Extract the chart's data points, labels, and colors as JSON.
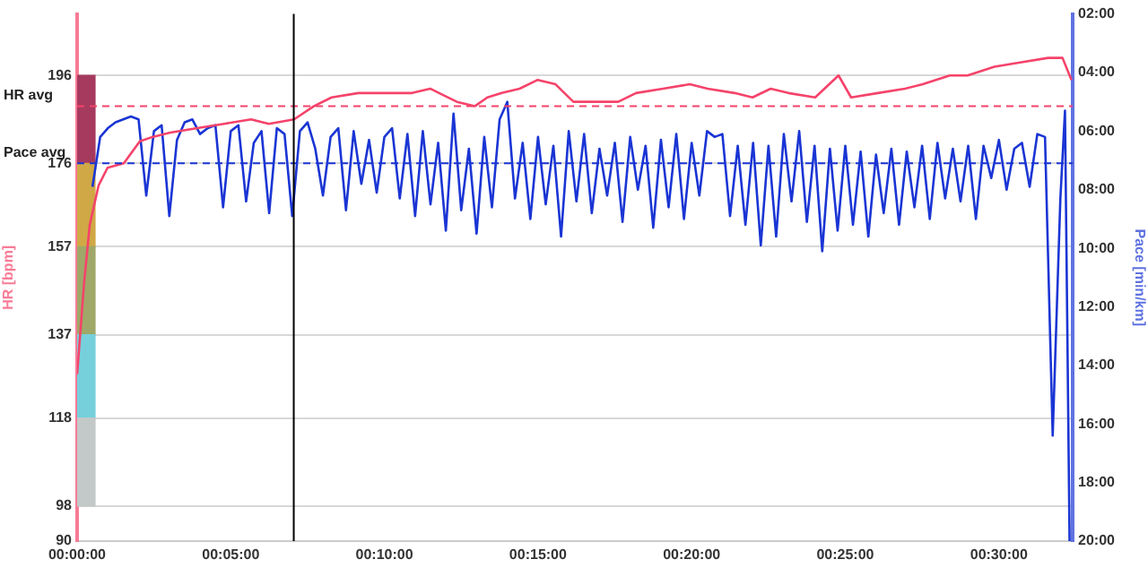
{
  "chart_data": {
    "type": "line",
    "ylabel": "HR [bpm]",
    "y2label": "Pace [min/km]",
    "xlim": [
      0,
      32.4
    ],
    "xticks": [
      {
        "value": 0,
        "label": "00:00:00"
      },
      {
        "value": 5,
        "label": "00:05:00"
      },
      {
        "value": 10,
        "label": "00:10:00"
      },
      {
        "value": 15,
        "label": "00:15:00"
      },
      {
        "value": 20,
        "label": "00:20:00"
      },
      {
        "value": 25,
        "label": "00:25:00"
      },
      {
        "value": 30,
        "label": "00:30:00"
      }
    ],
    "ylim": [
      90,
      210
    ],
    "yticks": [
      90,
      98,
      118,
      137,
      157,
      176,
      196
    ],
    "y2lim": [
      20,
      2
    ],
    "y2ticks": [
      {
        "value": 2,
        "label": "02:00"
      },
      {
        "value": 4,
        "label": "04:00"
      },
      {
        "value": 6,
        "label": "06:00"
      },
      {
        "value": 8,
        "label": "08:00"
      },
      {
        "value": 10,
        "label": "10:00"
      },
      {
        "value": 12,
        "label": "12:00"
      },
      {
        "value": 14,
        "label": "14:00"
      },
      {
        "value": 16,
        "label": "16:00"
      },
      {
        "value": 18,
        "label": "18:00"
      },
      {
        "value": 20,
        "label": "20:00"
      }
    ],
    "grid": "y",
    "legend": false,
    "marker": "none",
    "line_style": "solid",
    "series": [
      {
        "type": "bar",
        "color": "#c3c8c8",
        "axis": "y",
        "x": [
          0.29
        ],
        "base": [
          98
        ],
        "values": [
          20
        ]
      },
      {
        "type": "bar",
        "color": "#76d0dc",
        "axis": "y",
        "x": [
          0.29
        ],
        "base": [
          118
        ],
        "values": [
          19
        ]
      },
      {
        "type": "bar",
        "color": "#9fa868",
        "axis": "y",
        "x": [
          0.29
        ],
        "base": [
          137
        ],
        "values": [
          20
        ]
      },
      {
        "type": "bar",
        "color": "#d0a845",
        "axis": "y",
        "x": [
          0.29
        ],
        "base": [
          157
        ],
        "values": [
          19
        ]
      },
      {
        "type": "bar",
        "color": "#a63a5e",
        "axis": "y",
        "x": [
          0.29
        ],
        "base": [
          176
        ],
        "values": [
          20
        ]
      },
      {
        "color": "#f5436a",
        "axis": "y",
        "x": [
          0,
          0.23,
          0.41,
          0.7,
          0.99,
          1.52,
          2.04,
          2.45,
          3.03,
          3.91,
          4.78,
          5.66,
          6.24,
          7.06,
          7.7,
          8.28,
          9.15,
          9.74,
          10.9,
          11.49,
          11.78,
          12.36,
          12.94,
          13.35,
          13.82,
          14.4,
          14.99,
          15.57,
          16.15,
          16.73,
          17.61,
          18.19,
          19.07,
          19.94,
          20.52,
          21.4,
          21.98,
          22.57,
          23.15,
          24.02,
          24.78,
          25.19,
          26.06,
          26.94,
          27.52,
          28.4,
          28.98,
          29.85,
          30.73,
          31.6,
          32.07,
          32.36
        ],
        "values": [
          128,
          149,
          162,
          171,
          175,
          176,
          181,
          182,
          183,
          184,
          185,
          186,
          185,
          186,
          189,
          191,
          192,
          192,
          192,
          193,
          192,
          190,
          189,
          191,
          192,
          193,
          195,
          194,
          190,
          190,
          190,
          192,
          193,
          194,
          193,
          192,
          191,
          193,
          192,
          191,
          196,
          191,
          192,
          193,
          194,
          196,
          196,
          198,
          199,
          200,
          200,
          195
        ]
      },
      {
        "color": "#1a35d4",
        "axis": "y2",
        "x": [
          0.5,
          0.75,
          1,
          1.25,
          1.5,
          1.75,
          2,
          2.25,
          2.5,
          2.75,
          3,
          3.25,
          3.5,
          3.75,
          4,
          4.25,
          4.5,
          4.75,
          5,
          5.25,
          5.5,
          5.75,
          6,
          6.25,
          6.5,
          6.75,
          7,
          7.25,
          7.5,
          7.75,
          8,
          8.25,
          8.5,
          8.75,
          9,
          9.25,
          9.5,
          9.75,
          10,
          10.25,
          10.5,
          10.75,
          11,
          11.25,
          11.5,
          11.75,
          12,
          12.25,
          12.5,
          12.75,
          13,
          13.25,
          13.5,
          13.75,
          14,
          14.25,
          14.5,
          14.75,
          15,
          15.25,
          15.5,
          15.75,
          16,
          16.25,
          16.5,
          16.75,
          17,
          17.25,
          17.5,
          17.75,
          18,
          18.25,
          18.5,
          18.75,
          19,
          19.25,
          19.5,
          19.75,
          20,
          20.25,
          20.5,
          20.75,
          21,
          21.25,
          21.5,
          21.75,
          22,
          22.25,
          22.5,
          22.75,
          23,
          23.25,
          23.5,
          23.75,
          24,
          24.25,
          24.5,
          24.75,
          25,
          25.25,
          25.5,
          25.75,
          26,
          26.25,
          26.5,
          26.75,
          27,
          27.25,
          27.5,
          27.75,
          28,
          28.25,
          28.5,
          28.75,
          29,
          29.25,
          29.5,
          29.75,
          30,
          30.25,
          30.5,
          30.75,
          31,
          31.25,
          31.5,
          31.75,
          32,
          32.15,
          32.3
        ],
        "values": [
          7.9,
          6.2,
          5.9,
          5.7,
          5.6,
          5.5,
          5.6,
          8.2,
          6.0,
          5.8,
          8.9,
          6.3,
          5.7,
          5.6,
          6.1,
          5.9,
          5.8,
          8.6,
          6.0,
          5.8,
          8.4,
          6.4,
          6.0,
          8.8,
          5.9,
          6.1,
          8.9,
          6.0,
          5.7,
          6.6,
          8.2,
          6.2,
          5.9,
          8.7,
          6.0,
          7.8,
          6.3,
          8.1,
          6.2,
          5.9,
          8.3,
          6.1,
          8.9,
          6.0,
          8.5,
          6.4,
          9.4,
          5.4,
          8.7,
          6.6,
          9.5,
          6.2,
          8.6,
          5.6,
          5.0,
          8.3,
          6.4,
          9.0,
          6.2,
          8.5,
          6.5,
          9.6,
          6.0,
          8.4,
          6.1,
          8.8,
          6.6,
          8.2,
          6.4,
          9.1,
          6.2,
          8.0,
          6.5,
          9.3,
          6.3,
          8.6,
          6.1,
          9.0,
          6.4,
          8.2,
          6.0,
          6.2,
          6.1,
          8.9,
          6.5,
          9.2,
          6.4,
          9.9,
          6.5,
          9.6,
          6.1,
          8.4,
          6.0,
          9.1,
          6.5,
          10.1,
          6.6,
          9.4,
          6.5,
          9.2,
          6.7,
          9.6,
          6.8,
          8.8,
          6.6,
          9.2,
          6.7,
          8.6,
          6.5,
          9.0,
          6.4,
          8.3,
          6.6,
          8.4,
          6.5,
          9.0,
          6.5,
          7.6,
          6.3,
          8.0,
          6.6,
          6.4,
          7.9,
          6.1,
          6.2,
          16.4,
          8.3,
          5.3,
          20
        ]
      }
    ],
    "ref_lines": [
      {
        "axis": "y",
        "value": 189,
        "label": "HR avg",
        "color": "#f5436a",
        "line_style": "dashed"
      },
      {
        "axis": "y2",
        "value": 7.1,
        "label": "Pace avg",
        "color": "#1a35d4",
        "line_style": "dashed"
      },
      {
        "axis": "x",
        "value": 7.05,
        "color": "#000000",
        "line_style": "solid"
      }
    ]
  }
}
